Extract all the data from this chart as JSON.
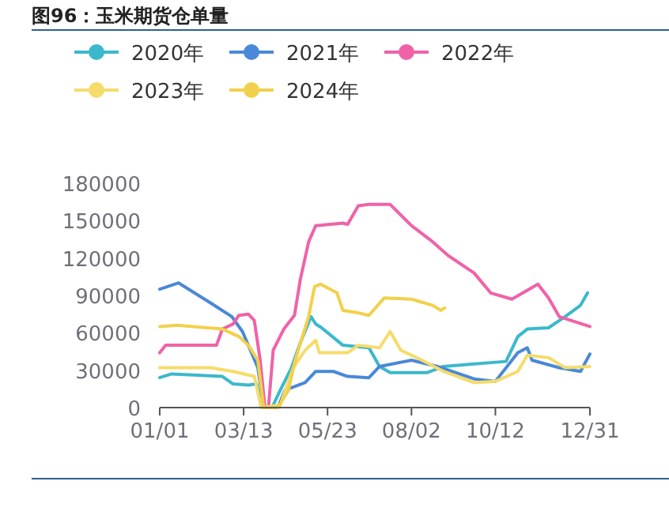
{
  "chart_data": {
    "type": "line",
    "title": "图96：玉米期货仓单量",
    "xlim": [
      "--01-01",
      "--12-31"
    ],
    "xticks": [
      {
        "value": "--01-01",
        "label": "01/01"
      },
      {
        "value": "--03-13",
        "label": "03/13"
      },
      {
        "value": "--05-23",
        "label": "05/23"
      },
      {
        "value": "--08-02",
        "label": "08/02"
      },
      {
        "value": "--10-12",
        "label": "10/12"
      },
      {
        "value": "--12-31",
        "label": "12/31"
      }
    ],
    "ylim": [
      0,
      180000
    ],
    "yticks": [
      0,
      30000,
      60000,
      90000,
      120000,
      150000,
      180000
    ],
    "grid": false,
    "legend": "top left",
    "line_style": "solid",
    "series": [
      {
        "name": "2020年",
        "color": "#3bb8cc",
        "x": [
          "--01-01",
          "--01-11",
          "--02-23",
          "--03-04",
          "--03-17",
          "--03-24",
          "--03-28",
          "--04-06",
          "--04-13",
          "--04-22",
          "--04-30",
          "--05-09",
          "--05-13",
          "--05-18",
          "--06-05",
          "--06-27",
          "--07-06",
          "--07-15",
          "--08-15",
          "--08-29",
          "--09-24",
          "--10-21",
          "--10-31",
          "--11-08",
          "--11-26",
          "--12-10",
          "--12-23",
          "--12-29"
        ],
        "values": [
          24000,
          27000,
          25000,
          19000,
          18000,
          19000,
          0,
          0,
          14000,
          31000,
          52000,
          73000,
          67000,
          64000,
          50000,
          48000,
          33000,
          28000,
          28000,
          33000,
          35000,
          37000,
          57000,
          63000,
          64000,
          73000,
          82000,
          92000
        ]
      },
      {
        "name": "2021年",
        "color": "#4a88d8",
        "x": [
          "--01-01",
          "--01-17",
          "--02-13",
          "--03-03",
          "--03-12",
          "--03-25",
          "--03-30",
          "--04-11",
          "--04-17",
          "--05-04",
          "--05-13",
          "--05-28",
          "--06-09",
          "--06-27",
          "--07-06",
          "--08-02",
          "--08-24",
          "--09-24",
          "--10-12",
          "--10-31",
          "--11-08",
          "--11-12",
          "--12-05",
          "--12-23",
          "--12-31"
        ],
        "values": [
          95000,
          100000,
          84000,
          73000,
          61000,
          32000,
          0,
          0,
          14000,
          20000,
          29000,
          29000,
          25000,
          24000,
          33000,
          38000,
          33000,
          23000,
          21000,
          44000,
          48000,
          38000,
          32000,
          29000,
          43000
        ]
      },
      {
        "name": "2022年",
        "color": "#f062a8",
        "x": [
          "--01-01",
          "--01-06",
          "--02-18",
          "--02-23",
          "--03-04",
          "--03-09",
          "--03-17",
          "--03-22",
          "--03-27",
          "--03-31",
          "--04-03",
          "--04-07",
          "--04-16",
          "--04-25",
          "--04-30",
          "--05-07",
          "--05-13",
          "--06-05",
          "--06-09",
          "--06-18",
          "--06-27",
          "--07-15",
          "--08-02",
          "--08-20",
          "--09-02",
          "--09-24",
          "--10-08",
          "--10-26",
          "--11-17",
          "--11-26",
          "--12-05",
          "--12-31"
        ],
        "values": [
          44000,
          50000,
          50000,
          63000,
          67000,
          74000,
          75000,
          70000,
          38000,
          0,
          0,
          46000,
          63000,
          74000,
          103000,
          133000,
          146000,
          148000,
          147000,
          162000,
          163000,
          163000,
          146000,
          133000,
          122000,
          108000,
          92000,
          87000,
          99000,
          88000,
          73000,
          65000
        ]
      },
      {
        "name": "2023年",
        "color": "#f5dc6a",
        "x": [
          "--01-01",
          "--02-13",
          "--03-04",
          "--03-22",
          "--03-28",
          "--04-13",
          "--04-24",
          "--05-04",
          "--05-13",
          "--05-16",
          "--06-09",
          "--06-18",
          "--07-06",
          "--07-15",
          "--07-24",
          "--08-11",
          "--08-29",
          "--09-24",
          "--10-12",
          "--10-31",
          "--11-08",
          "--11-26",
          "--12-10",
          "--12-31"
        ],
        "values": [
          32000,
          32000,
          29000,
          25000,
          0,
          2000,
          32000,
          46000,
          54000,
          44000,
          44000,
          50000,
          48000,
          61000,
          46000,
          38000,
          29000,
          20000,
          21000,
          29000,
          42000,
          40000,
          32000,
          33000
        ]
      },
      {
        "name": "2024年",
        "color": "#f2d04b",
        "x": [
          "--01-01",
          "--01-16",
          "--02-23",
          "--03-09",
          "--03-17",
          "--03-25",
          "--03-30",
          "--04-11",
          "--04-20",
          "--04-25",
          "--05-07",
          "--05-12",
          "--05-17",
          "--05-31",
          "--06-05",
          "--06-18",
          "--06-27",
          "--07-10",
          "--08-02",
          "--08-20",
          "--08-27",
          "--08-30"
        ],
        "values": [
          65000,
          66000,
          63000,
          57000,
          50000,
          38000,
          0,
          0,
          14000,
          36000,
          73000,
          97000,
          99000,
          92000,
          78000,
          76000,
          74000,
          88000,
          87000,
          82000,
          78000,
          80000
        ]
      }
    ]
  }
}
